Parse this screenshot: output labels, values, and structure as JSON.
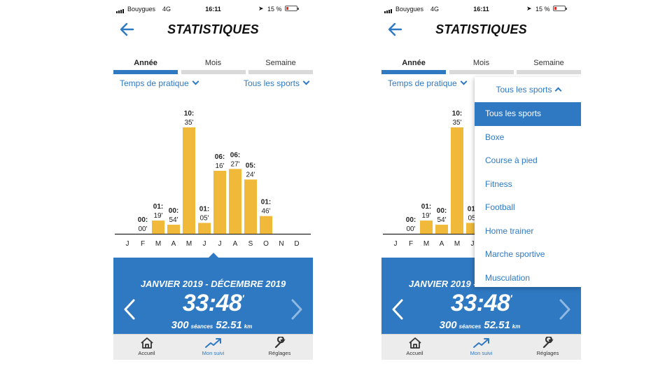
{
  "status_bar": {
    "carrier": "Bouygues",
    "network": "4G",
    "time": "16:11",
    "battery_percent": "15 %"
  },
  "header": {
    "title": "STATISTIQUES",
    "back_icon": "arrow-left-icon"
  },
  "tabs": [
    {
      "label": "Année",
      "active": true
    },
    {
      "label": "Mois",
      "active": false
    },
    {
      "label": "Semaine",
      "active": false
    }
  ],
  "filters": {
    "metric": "Temps de pratique",
    "sport": "Tous les sports"
  },
  "chart_data": {
    "type": "bar",
    "categories": [
      "J",
      "F",
      "M",
      "A",
      "M",
      "J",
      "J",
      "A",
      "S",
      "O",
      "N",
      "D"
    ],
    "values": [
      null,
      0,
      79,
      54,
      635,
      65,
      376,
      387,
      324,
      106,
      null,
      null
    ],
    "label_hours": [
      "",
      "00:",
      "01:",
      "00:",
      "10:",
      "01:",
      "06:",
      "06:",
      "05:",
      "01:",
      "",
      ""
    ],
    "label_minutes": [
      "",
      "00'",
      "19'",
      "54'",
      "35'",
      "05'",
      "16'",
      "27'",
      "24'",
      "46'",
      "",
      ""
    ],
    "ylabel": "",
    "xlabel": "",
    "bar_color": "#f0b93a"
  },
  "summary": {
    "period": "JANVIER 2019 - DÉCEMBRE 2019",
    "total_time": "33:48",
    "total_time_suffix": "'",
    "sessions_value": "300",
    "sessions_label": "séances",
    "distance_value": "52.51",
    "distance_label": "km",
    "bg_color": "#2f79c2"
  },
  "tabbar": [
    {
      "label": "Accueil",
      "icon": "home-icon",
      "active": false
    },
    {
      "label": "Mon suivi",
      "icon": "trend-chart-icon",
      "active": true
    },
    {
      "label": "Réglages",
      "icon": "wrench-icon",
      "active": false
    }
  ],
  "dropdown": {
    "header": "Tous les sports",
    "items": [
      "Tous les sports",
      "Boxe",
      "Course à pied",
      "Fitness",
      "Football",
      "Home trainer",
      "Marche sportive",
      "Musculation"
    ],
    "selected": "Tous les sports"
  }
}
